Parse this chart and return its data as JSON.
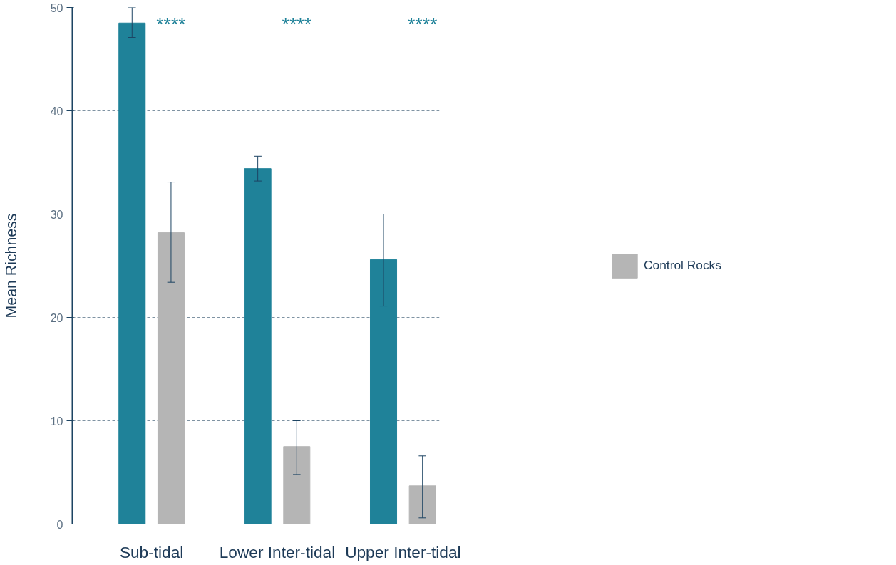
{
  "chart_data": {
    "type": "bar",
    "ylabel": "Mean Richness",
    "categories": [
      "Sub-tidal",
      "Lower Inter-tidal",
      "Upper Inter-tidal"
    ],
    "series": [
      {
        "color": "#1f8299",
        "values": [
          48.5,
          34.4,
          25.6
        ],
        "errors": [
          [
            47.1,
            50.0
          ],
          [
            33.2,
            35.6
          ],
          [
            21.1,
            30.0
          ]
        ]
      },
      {
        "name": "Control Rocks",
        "color": "#b5b5b5",
        "values": [
          28.2,
          7.5,
          3.7
        ],
        "errors": [
          [
            23.4,
            33.1
          ],
          [
            4.8,
            10.0
          ],
          [
            0.6,
            6.6
          ]
        ]
      }
    ],
    "ylim": [
      0,
      50
    ],
    "yticks": [
      0,
      10,
      20,
      30,
      40,
      50
    ],
    "grid": "y",
    "legend": "right",
    "annotations": [
      "****",
      "****",
      "****"
    ]
  }
}
